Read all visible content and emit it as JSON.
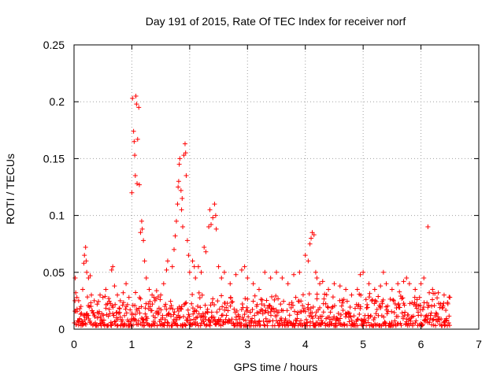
{
  "chart_data": {
    "type": "scatter",
    "title": "Day 191 of 2015, Rate Of TEC Index for receiver norf",
    "xlabel": "GPS time / hours",
    "ylabel": "ROTI / TECUs",
    "xlim": [
      0,
      7
    ],
    "ylim": [
      0,
      0.25
    ],
    "xticks": [
      0,
      1,
      2,
      3,
      4,
      5,
      6,
      7
    ],
    "yticks": [
      0,
      0.05,
      0.1,
      0.15,
      0.2,
      0.25
    ],
    "xtick_labels": [
      "0",
      "1",
      "2",
      "3",
      "4",
      "5",
      "6",
      "7"
    ],
    "ytick_labels": [
      "0",
      "0.05",
      "0.1",
      "0.15",
      "0.2",
      "0.25"
    ],
    "grid": true,
    "marker": "+",
    "color": "#ff0000",
    "series": [
      {
        "name": "ROTI",
        "points": [
          [
            0.02,
            0.045
          ],
          [
            0.03,
            0.032
          ],
          [
            0.05,
            0.028
          ],
          [
            0.08,
            0.025
          ],
          [
            0.1,
            0.018
          ],
          [
            0.12,
            0.02
          ],
          [
            0.15,
            0.035
          ],
          [
            0.17,
            0.058
          ],
          [
            0.18,
            0.065
          ],
          [
            0.2,
            0.072
          ],
          [
            0.21,
            0.06
          ],
          [
            0.22,
            0.05
          ],
          [
            0.25,
            0.045
          ],
          [
            0.28,
            0.047
          ],
          [
            0.3,
            0.03
          ],
          [
            0.35,
            0.025
          ],
          [
            0.4,
            0.022
          ],
          [
            0.45,
            0.03
          ],
          [
            0.5,
            0.028
          ],
          [
            0.55,
            0.035
          ],
          [
            0.6,
            0.027
          ],
          [
            0.65,
            0.052
          ],
          [
            0.67,
            0.055
          ],
          [
            0.7,
            0.038
          ],
          [
            0.75,
            0.03
          ],
          [
            0.8,
            0.025
          ],
          [
            0.85,
            0.032
          ],
          [
            0.9,
            0.04
          ],
          [
            0.95,
            0.028
          ],
          [
            1.0,
            0.12
          ],
          [
            1.01,
            0.203
          ],
          [
            1.03,
            0.174
          ],
          [
            1.04,
            0.165
          ],
          [
            1.05,
            0.153
          ],
          [
            1.06,
            0.135
          ],
          [
            1.07,
            0.205
          ],
          [
            1.08,
            0.198
          ],
          [
            1.09,
            0.128
          ],
          [
            1.1,
            0.167
          ],
          [
            1.12,
            0.195
          ],
          [
            1.13,
            0.127
          ],
          [
            1.15,
            0.085
          ],
          [
            1.17,
            0.095
          ],
          [
            1.18,
            0.088
          ],
          [
            1.2,
            0.078
          ],
          [
            1.22,
            0.06
          ],
          [
            1.25,
            0.045
          ],
          [
            1.3,
            0.035
          ],
          [
            1.35,
            0.03
          ],
          [
            1.4,
            0.025
          ],
          [
            1.5,
            0.03
          ],
          [
            1.55,
            0.04
          ],
          [
            1.6,
            0.052
          ],
          [
            1.62,
            0.06
          ],
          [
            1.7,
            0.055
          ],
          [
            1.73,
            0.07
          ],
          [
            1.75,
            0.082
          ],
          [
            1.77,
            0.095
          ],
          [
            1.79,
            0.11
          ],
          [
            1.8,
            0.125
          ],
          [
            1.81,
            0.13
          ],
          [
            1.82,
            0.145
          ],
          [
            1.83,
            0.15
          ],
          [
            1.85,
            0.122
          ],
          [
            1.86,
            0.105
          ],
          [
            1.87,
            0.115
          ],
          [
            1.88,
            0.09
          ],
          [
            1.9,
            0.153
          ],
          [
            1.92,
            0.163
          ],
          [
            1.93,
            0.155
          ],
          [
            1.94,
            0.135
          ],
          [
            1.96,
            0.078
          ],
          [
            1.98,
            0.065
          ],
          [
            2.0,
            0.05
          ],
          [
            2.05,
            0.06
          ],
          [
            2.08,
            0.055
          ],
          [
            2.1,
            0.045
          ],
          [
            2.15,
            0.055
          ],
          [
            2.2,
            0.05
          ],
          [
            2.25,
            0.072
          ],
          [
            2.28,
            0.068
          ],
          [
            2.33,
            0.09
          ],
          [
            2.35,
            0.105
          ],
          [
            2.37,
            0.092
          ],
          [
            2.4,
            0.098
          ],
          [
            2.43,
            0.11
          ],
          [
            2.45,
            0.1
          ],
          [
            2.46,
            0.088
          ],
          [
            2.5,
            0.055
          ],
          [
            2.55,
            0.045
          ],
          [
            2.6,
            0.05
          ],
          [
            2.7,
            0.04
          ],
          [
            2.8,
            0.048
          ],
          [
            2.9,
            0.052
          ],
          [
            2.95,
            0.055
          ],
          [
            3.0,
            0.045
          ],
          [
            3.1,
            0.04
          ],
          [
            3.2,
            0.035
          ],
          [
            3.3,
            0.05
          ],
          [
            3.4,
            0.045
          ],
          [
            3.5,
            0.05
          ],
          [
            3.6,
            0.045
          ],
          [
            3.7,
            0.04
          ],
          [
            3.8,
            0.048
          ],
          [
            3.9,
            0.05
          ],
          [
            4.0,
            0.065
          ],
          [
            4.05,
            0.06
          ],
          [
            4.08,
            0.075
          ],
          [
            4.1,
            0.08
          ],
          [
            4.12,
            0.085
          ],
          [
            4.15,
            0.083
          ],
          [
            4.18,
            0.05
          ],
          [
            4.2,
            0.045
          ],
          [
            4.25,
            0.04
          ],
          [
            4.3,
            0.042
          ],
          [
            4.4,
            0.035
          ],
          [
            4.5,
            0.04
          ],
          [
            4.6,
            0.038
          ],
          [
            4.7,
            0.035
          ],
          [
            4.8,
            0.03
          ],
          [
            4.9,
            0.035
          ],
          [
            4.95,
            0.048
          ],
          [
            5.0,
            0.05
          ],
          [
            5.1,
            0.04
          ],
          [
            5.2,
            0.035
          ],
          [
            5.3,
            0.038
          ],
          [
            5.35,
            0.05
          ],
          [
            5.4,
            0.04
          ],
          [
            5.5,
            0.035
          ],
          [
            5.6,
            0.04
          ],
          [
            5.7,
            0.042
          ],
          [
            5.75,
            0.045
          ],
          [
            5.8,
            0.04
          ],
          [
            5.9,
            0.035
          ],
          [
            6.0,
            0.04
          ],
          [
            6.05,
            0.045
          ],
          [
            6.12,
            0.09
          ],
          [
            6.2,
            0.035
          ],
          [
            6.3,
            0.032
          ],
          [
            6.4,
            0.03
          ],
          [
            6.5,
            0.028
          ]
        ],
        "baseline_band": {
          "x_range": [
            0,
            6.5
          ],
          "y_min": 0.003,
          "y_max": 0.035,
          "samples": 900
        }
      }
    ]
  }
}
